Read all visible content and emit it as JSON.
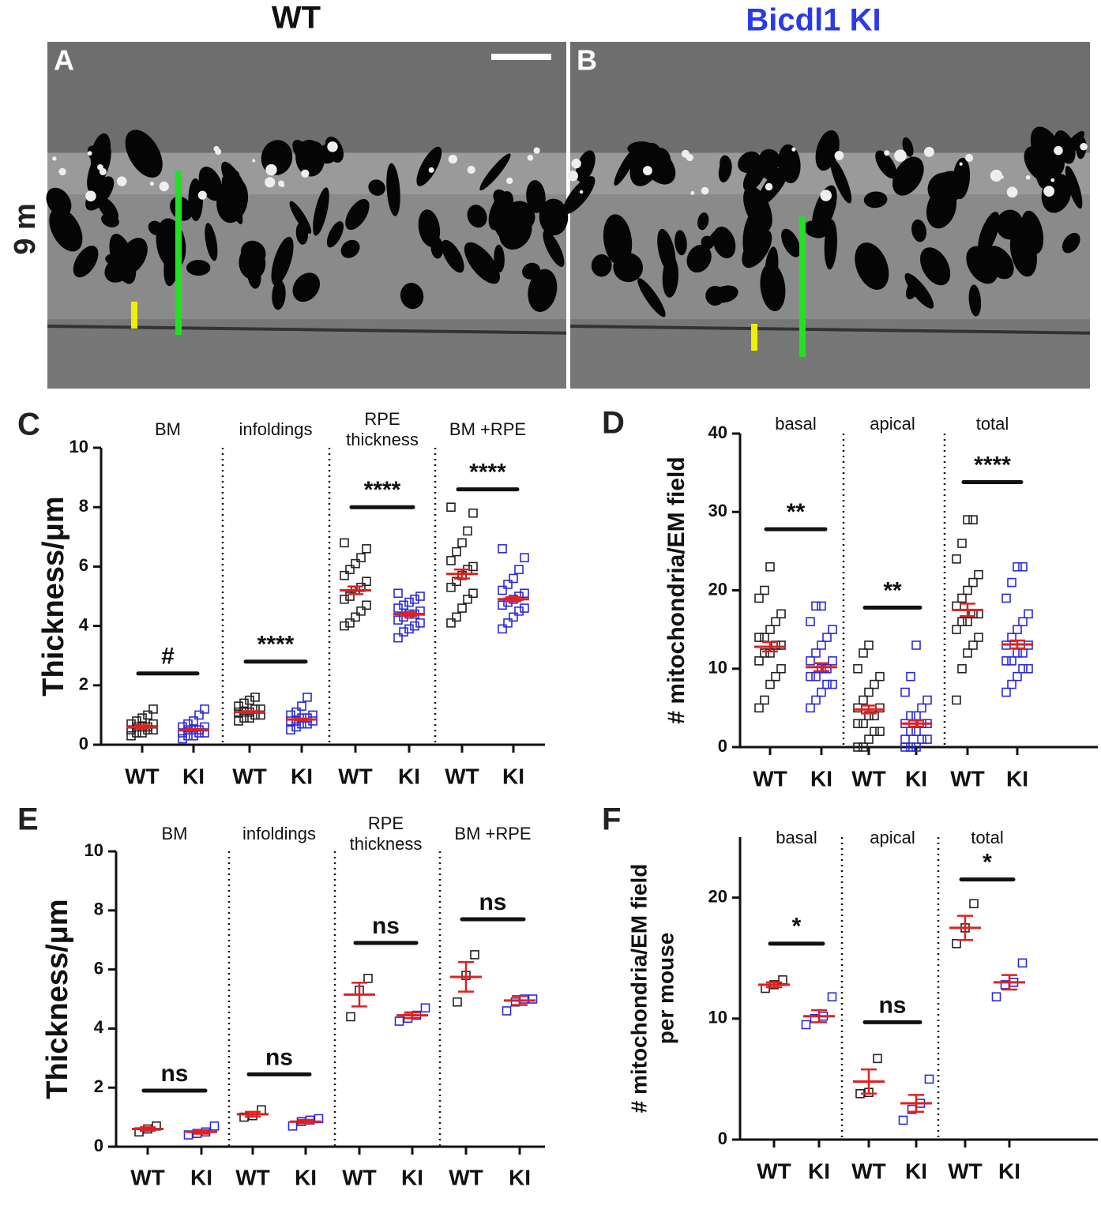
{
  "header": {
    "col_titles": [
      "WT",
      "Bicdl1 KI"
    ],
    "row_label": "9 m",
    "panel_labels": [
      "A",
      "B"
    ]
  },
  "chart_data": [
    {
      "type": "dotplot",
      "panel_label": "C",
      "y_label_lines": [
        "Thickness/μm"
      ],
      "ylim": [
        0,
        10
      ],
      "yticks": [
        0,
        2,
        4,
        6,
        8,
        10
      ],
      "mean_color": "#e02020",
      "sections": [
        {
          "title_lines": [
            "BM"
          ],
          "significance": "#",
          "groups": [
            {
              "label": "WT",
              "color": "#222222",
              "points": [
                0.3,
                0.4,
                0.4,
                0.5,
                0.5,
                0.5,
                0.6,
                0.6,
                0.6,
                0.7,
                0.7,
                0.8,
                0.9,
                1.0,
                1.2
              ],
              "mean": 0.6,
              "sem": 0.05
            },
            {
              "label": "KI",
              "color": "#2a2ad8",
              "points": [
                0.2,
                0.3,
                0.3,
                0.4,
                0.4,
                0.4,
                0.5,
                0.5,
                0.5,
                0.6,
                0.6,
                0.7,
                0.8,
                1.0,
                1.2
              ],
              "mean": 0.5,
              "sem": 0.03
            }
          ]
        },
        {
          "title_lines": [
            "infoldings"
          ],
          "significance": "****",
          "groups": [
            {
              "label": "WT",
              "color": "#222222",
              "points": [
                0.8,
                0.9,
                0.9,
                1.0,
                1.0,
                1.1,
                1.1,
                1.1,
                1.2,
                1.2,
                1.3,
                1.4,
                1.5,
                1.6
              ],
              "mean": 1.1,
              "sem": 0.03
            },
            {
              "label": "KI",
              "color": "#2a2ad8",
              "points": [
                0.5,
                0.6,
                0.7,
                0.7,
                0.8,
                0.8,
                0.8,
                0.9,
                0.9,
                1.0,
                1.0,
                1.1,
                1.3,
                1.6
              ],
              "mean": 0.85,
              "sem": 0.03
            }
          ]
        },
        {
          "title_lines": [
            "RPE",
            "thickness"
          ],
          "significance": "****",
          "groups": [
            {
              "label": "WT",
              "color": "#222222",
              "points": [
                4.0,
                4.1,
                4.3,
                4.5,
                4.7,
                4.9,
                5.0,
                5.2,
                5.3,
                5.5,
                5.7,
                5.9,
                6.1,
                6.3,
                6.6,
                6.8
              ],
              "mean": 5.2,
              "sem": 0.13
            },
            {
              "label": "KI",
              "color": "#2a2ad8",
              "points": [
                3.6,
                3.8,
                3.9,
                4.0,
                4.1,
                4.2,
                4.3,
                4.4,
                4.4,
                4.5,
                4.6,
                4.7,
                4.8,
                4.9,
                5.0,
                5.1
              ],
              "mean": 4.4,
              "sem": 0.06
            }
          ]
        },
        {
          "title_lines": [
            "BM +RPE"
          ],
          "significance": "****",
          "groups": [
            {
              "label": "WT",
              "color": "#222222",
              "points": [
                4.1,
                4.3,
                4.6,
                4.9,
                5.1,
                5.3,
                5.5,
                5.7,
                5.9,
                6.0,
                6.2,
                6.5,
                6.8,
                7.2,
                7.8,
                8.0
              ],
              "mean": 5.75,
              "sem": 0.15
            },
            {
              "label": "KI",
              "color": "#2a2ad8",
              "points": [
                3.9,
                4.1,
                4.3,
                4.5,
                4.6,
                4.7,
                4.8,
                4.9,
                5.0,
                5.1,
                5.2,
                5.4,
                5.6,
                5.9,
                6.3,
                6.6
              ],
              "mean": 4.9,
              "sem": 0.07
            }
          ]
        }
      ]
    },
    {
      "type": "dotplot",
      "panel_label": "D",
      "y_label_lines": [
        "# mitochondria/EM field"
      ],
      "ylim": [
        0,
        40
      ],
      "yticks": [
        0,
        10,
        20,
        30,
        40
      ],
      "mean_color": "#e02020",
      "sections": [
        {
          "title_lines": [
            "basal"
          ],
          "significance": "**",
          "groups": [
            {
              "label": "WT",
              "color": "#222222",
              "points": [
                5,
                6,
                8,
                9,
                10,
                11,
                12,
                12,
                13,
                13,
                14,
                14,
                15,
                16,
                17,
                19,
                20,
                23
              ],
              "mean": 12.8,
              "sem": 0.6
            },
            {
              "label": "KI",
              "color": "#2a2ad8",
              "points": [
                5,
                6,
                7,
                8,
                8,
                9,
                9,
                10,
                10,
                11,
                11,
                12,
                13,
                14,
                15,
                16,
                18,
                18
              ],
              "mean": 10.2,
              "sem": 0.5
            }
          ]
        },
        {
          "title_lines": [
            "apical"
          ],
          "significance": "**",
          "groups": [
            {
              "label": "WT",
              "color": "#222222",
              "points": [
                0,
                0,
                1,
                2,
                2,
                3,
                3,
                4,
                4,
                5,
                5,
                6,
                7,
                8,
                9,
                10,
                12,
                13
              ],
              "mean": 4.8,
              "sem": 0.5
            },
            {
              "label": "KI",
              "color": "#2a2ad8",
              "points": [
                0,
                0,
                0,
                1,
                1,
                1,
                2,
                2,
                3,
                3,
                3,
                4,
                4,
                5,
                6,
                7,
                9,
                13
              ],
              "mean": 3.0,
              "sem": 0.4
            }
          ]
        },
        {
          "title_lines": [
            "total"
          ],
          "significance": "****",
          "groups": [
            {
              "label": "WT",
              "color": "#222222",
              "points": [
                6,
                10,
                12,
                13,
                14,
                15,
                16,
                16,
                17,
                17,
                18,
                19,
                20,
                21,
                22,
                24,
                26,
                29,
                29
              ],
              "mean": 17.5,
              "sem": 0.8
            },
            {
              "label": "KI",
              "color": "#2a2ad8",
              "points": [
                7,
                8,
                9,
                10,
                10,
                11,
                11,
                12,
                12,
                13,
                13,
                14,
                15,
                16,
                17,
                19,
                21,
                23,
                23
              ],
              "mean": 13.1,
              "sem": 0.5
            }
          ]
        }
      ]
    },
    {
      "type": "dotplot",
      "panel_label": "E",
      "y_label_lines": [
        "Thickness/μm"
      ],
      "ylim": [
        0,
        10
      ],
      "yticks": [
        0,
        2,
        4,
        6,
        8,
        10
      ],
      "mean_color": "#e02020",
      "sections": [
        {
          "title_lines": [
            "BM"
          ],
          "significance": "ns",
          "groups": [
            {
              "label": "WT",
              "color": "#222222",
              "points": [
                0.5,
                0.6,
                0.7
              ],
              "mean": 0.6,
              "sem": 0.06
            },
            {
              "label": "KI",
              "color": "#2a2ad8",
              "points": [
                0.4,
                0.45,
                0.5,
                0.7
              ],
              "mean": 0.5,
              "sem": 0.06
            }
          ]
        },
        {
          "title_lines": [
            "infoldings"
          ],
          "significance": "ns",
          "groups": [
            {
              "label": "WT",
              "color": "#222222",
              "points": [
                1.0,
                1.05,
                1.25
              ],
              "mean": 1.1,
              "sem": 0.08
            },
            {
              "label": "KI",
              "color": "#2a2ad8",
              "points": [
                0.7,
                0.85,
                0.9,
                0.95
              ],
              "mean": 0.85,
              "sem": 0.06
            }
          ]
        },
        {
          "title_lines": [
            "RPE",
            "thickness"
          ],
          "significance": "ns",
          "groups": [
            {
              "label": "WT",
              "color": "#222222",
              "points": [
                4.4,
                5.3,
                5.7
              ],
              "mean": 5.15,
              "sem": 0.4
            },
            {
              "label": "KI",
              "color": "#2a2ad8",
              "points": [
                4.25,
                4.35,
                4.45,
                4.7
              ],
              "mean": 4.45,
              "sem": 0.1
            }
          ]
        },
        {
          "title_lines": [
            "BM +RPE"
          ],
          "significance": "ns",
          "groups": [
            {
              "label": "WT",
              "color": "#222222",
              "points": [
                4.9,
                5.8,
                6.5
              ],
              "mean": 5.75,
              "sem": 0.5
            },
            {
              "label": "KI",
              "color": "#2a2ad8",
              "points": [
                4.6,
                4.9,
                5.0,
                5.0
              ],
              "mean": 4.95,
              "sem": 0.15
            }
          ]
        }
      ]
    },
    {
      "type": "dotplot",
      "panel_label": "F",
      "y_label_lines": [
        "# mitochondria/EM field",
        "per mouse"
      ],
      "ylim": [
        0,
        25
      ],
      "yticks": [
        0,
        10,
        20
      ],
      "mean_color": "#e02020",
      "sections": [
        {
          "title_lines": [
            "basal"
          ],
          "significance": "*",
          "groups": [
            {
              "label": "WT",
              "color": "#222222",
              "points": [
                12.5,
                12.8,
                13.2
              ],
              "mean": 12.8,
              "sem": 0.2
            },
            {
              "label": "KI",
              "color": "#2a2ad8",
              "points": [
                9.5,
                10.0,
                10.2,
                11.8
              ],
              "mean": 10.2,
              "sem": 0.5
            }
          ]
        },
        {
          "title_lines": [
            "apical"
          ],
          "significance": "ns",
          "groups": [
            {
              "label": "WT",
              "color": "#222222",
              "points": [
                3.8,
                3.9,
                6.7
              ],
              "mean": 4.8,
              "sem": 1.0
            },
            {
              "label": "KI",
              "color": "#2a2ad8",
              "points": [
                1.6,
                2.5,
                3.0,
                5.0
              ],
              "mean": 3.0,
              "sem": 0.7
            }
          ]
        },
        {
          "title_lines": [
            "total"
          ],
          "significance": "*",
          "groups": [
            {
              "label": "WT",
              "color": "#222222",
              "points": [
                16.2,
                17.5,
                19.5
              ],
              "mean": 17.5,
              "sem": 1.0
            },
            {
              "label": "KI",
              "color": "#2a2ad8",
              "points": [
                11.8,
                12.8,
                13.0,
                14.6
              ],
              "mean": 13.0,
              "sem": 0.6
            }
          ]
        }
      ]
    }
  ]
}
